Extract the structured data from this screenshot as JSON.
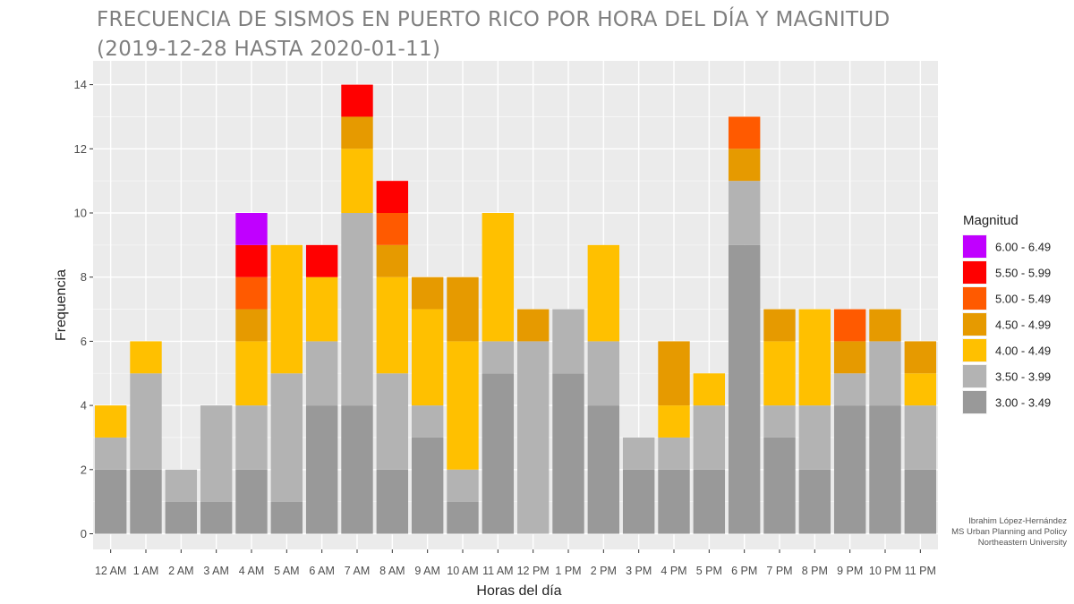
{
  "title": {
    "line1": "FRECUENCIA DE SISMOS EN PUERTO RICO POR HORA DEL DÍA Y MAGNITUD",
    "line2": "(2019-12-28 HASTA 2020-01-11)"
  },
  "credits": {
    "line1": "Ibrahim López-Hernández",
    "line2": "MS Urban Planning and Policy",
    "line3": "Northeastern University"
  },
  "chart_data": {
    "type": "bar",
    "stacked": true,
    "xlabel": "Horas del día",
    "ylabel": "Frequencia",
    "ylim": [
      0,
      14.5
    ],
    "yticks": [
      0,
      2,
      4,
      6,
      8,
      10,
      12,
      14
    ],
    "grid": true,
    "legend_title": "Magnitud",
    "legend_position": "right",
    "categories": [
      "12 AM",
      "1 AM",
      "2 AM",
      "3 AM",
      "4 AM",
      "5 AM",
      "6 AM",
      "7 AM",
      "8 AM",
      "9 AM",
      "10 AM",
      "11 AM",
      "12 PM",
      "1 PM",
      "2 PM",
      "3 PM",
      "4 PM",
      "5 PM",
      "6 PM",
      "7 PM",
      "8 PM",
      "9 PM",
      "10 PM",
      "11 PM"
    ],
    "series": [
      {
        "name": "3.00 - 3.49",
        "color": "#999999",
        "values": [
          2,
          2,
          1,
          1,
          2,
          1,
          4,
          4,
          2,
          3,
          1,
          5,
          0,
          5,
          4,
          2,
          2,
          2,
          9,
          3,
          2,
          4,
          4,
          2
        ]
      },
      {
        "name": "3.50 - 3.99",
        "color": "#b3b3b3",
        "values": [
          1,
          3,
          1,
          3,
          2,
          4,
          2,
          6,
          3,
          1,
          1,
          1,
          6,
          2,
          2,
          1,
          1,
          2,
          2,
          1,
          2,
          1,
          2,
          2
        ]
      },
      {
        "name": "4.00 - 4.49",
        "color": "#ffc000",
        "values": [
          1,
          1,
          0,
          0,
          2,
          4,
          2,
          2,
          3,
          3,
          4,
          4,
          0,
          0,
          3,
          0,
          1,
          1,
          0,
          2,
          3,
          0,
          0,
          1
        ]
      },
      {
        "name": "4.50 - 4.99",
        "color": "#e69a00",
        "values": [
          0,
          0,
          0,
          0,
          1,
          0,
          0,
          1,
          1,
          1,
          2,
          0,
          1,
          0,
          0,
          0,
          2,
          0,
          1,
          1,
          0,
          1,
          1,
          1
        ]
      },
      {
        "name": "5.00 - 5.49",
        "color": "#ff5a00",
        "values": [
          0,
          0,
          0,
          0,
          1,
          0,
          0,
          0,
          1,
          0,
          0,
          0,
          0,
          0,
          0,
          0,
          0,
          0,
          1,
          0,
          0,
          1,
          0,
          0
        ]
      },
      {
        "name": "5.50 - 5.99",
        "color": "#ff0000",
        "values": [
          0,
          0,
          0,
          0,
          1,
          0,
          1,
          1,
          1,
          0,
          0,
          0,
          0,
          0,
          0,
          0,
          0,
          0,
          0,
          0,
          0,
          0,
          0,
          0
        ]
      },
      {
        "name": "6.00 - 6.49",
        "color": "#c000ff",
        "values": [
          0,
          0,
          0,
          0,
          1,
          0,
          0,
          0,
          0,
          0,
          0,
          0,
          0,
          0,
          0,
          0,
          0,
          0,
          0,
          0,
          0,
          0,
          0,
          0
        ]
      }
    ]
  }
}
